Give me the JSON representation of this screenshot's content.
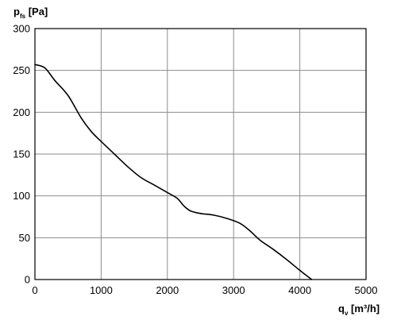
{
  "chart_data": {
    "type": "line",
    "ylabel": {
      "main": "p",
      "sub": "fs",
      "unit": " [Pa]"
    },
    "xlabel": {
      "main": "q",
      "sub": "v",
      "unit": " [m³/h]"
    },
    "xlim": [
      0,
      5000
    ],
    "ylim": [
      0,
      300
    ],
    "xticks": [
      0,
      1000,
      2000,
      3000,
      4000,
      5000
    ],
    "yticks": [
      0,
      50,
      100,
      150,
      200,
      250,
      300
    ],
    "xtick_labels": [
      "0",
      "1000",
      "2000",
      "3000",
      "4000",
      "5000"
    ],
    "ytick_labels": [
      "0",
      "50",
      "100",
      "150",
      "200",
      "250",
      "300"
    ],
    "grid": true,
    "series": [
      {
        "x": [
          0,
          150,
          300,
          500,
          700,
          850,
          1000,
          1200,
          1400,
          1600,
          1800,
          2000,
          2150,
          2250,
          2350,
          2500,
          2700,
          2900,
          3100,
          3250,
          3400,
          3600,
          3800,
          4000,
          4180
        ],
        "y": [
          257,
          253,
          238,
          220,
          193,
          177,
          165,
          150,
          135,
          122,
          113,
          104,
          97,
          88,
          82,
          79,
          77,
          73,
          67,
          58,
          47,
          36,
          24,
          11,
          0
        ]
      }
    ]
  }
}
